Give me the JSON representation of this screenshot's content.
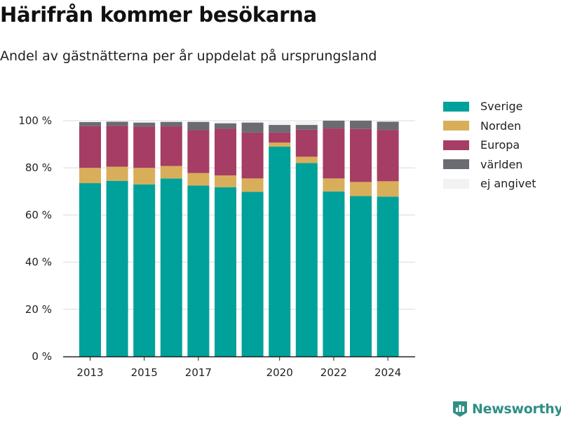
{
  "title": "Härifrån kommer besökarna",
  "subtitle": "Andel av gästnätterna per år uppdelat på ursprungsland",
  "brand": "Newsworthy",
  "colors": {
    "Sverige": "#00a19a",
    "Norden": "#d9ae5a",
    "Europa": "#a63d64",
    "världen": "#6b6b72",
    "ej angivet": "#f2f2f2"
  },
  "chart_data": {
    "type": "bar",
    "stacked": true,
    "categories": [
      "2013",
      "2014",
      "2015",
      "2016",
      "2017",
      "2018",
      "2019",
      "2020",
      "2021",
      "2022",
      "2023",
      "2024"
    ],
    "x_tick_labels": [
      "2013",
      "2015",
      "2017",
      "2020",
      "2022",
      "2024"
    ],
    "y_tick_labels": [
      "0 %",
      "20 %",
      "40 %",
      "60 %",
      "80 %",
      "100 %"
    ],
    "ylim": [
      0,
      100
    ],
    "grid": true,
    "legend_position": "top-right",
    "series": [
      {
        "name": "Sverige",
        "values": [
          73.5,
          74.5,
          73.0,
          75.5,
          72.5,
          71.8,
          69.8,
          89.0,
          82.0,
          70.0,
          68.0,
          67.8
        ]
      },
      {
        "name": "Norden",
        "values": [
          6.5,
          6.0,
          7.0,
          5.3,
          5.3,
          5.0,
          5.7,
          1.7,
          2.7,
          5.5,
          6.0,
          6.5
        ]
      },
      {
        "name": "Europa",
        "values": [
          17.7,
          17.3,
          17.5,
          16.8,
          18.2,
          19.8,
          19.5,
          4.3,
          11.5,
          21.2,
          22.5,
          21.8
        ]
      },
      {
        "name": "världen",
        "values": [
          1.7,
          1.8,
          1.7,
          1.9,
          3.5,
          2.3,
          4.2,
          3.2,
          2.0,
          3.3,
          3.5,
          3.5
        ]
      },
      {
        "name": "ej angivet",
        "values": [
          0.6,
          0.4,
          0.8,
          0.5,
          0.5,
          0.6,
          0.8,
          1.8,
          1.8,
          0.0,
          0.0,
          0.4
        ]
      }
    ]
  }
}
